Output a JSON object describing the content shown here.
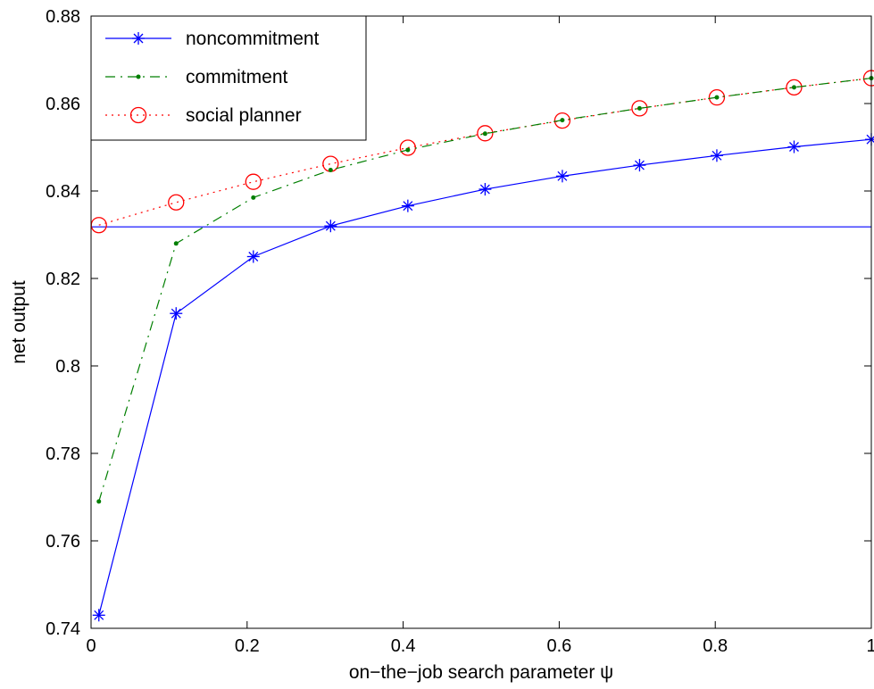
{
  "chart_data": {
    "type": "line",
    "title": "",
    "xlabel": "on−the−job search parameter ψ",
    "ylabel": "net output",
    "xlim": [
      0,
      1
    ],
    "ylim": [
      0.74,
      0.88
    ],
    "xticks": [
      0,
      0.2,
      0.4,
      0.6,
      0.8,
      1
    ],
    "xtick_labels": [
      "0",
      "0.2",
      "0.4",
      "0.6",
      "0.8",
      "1"
    ],
    "yticks": [
      0.74,
      0.76,
      0.78,
      0.8,
      0.82,
      0.84,
      0.86,
      0.88
    ],
    "ytick_labels": [
      "0.74",
      "0.76",
      "0.78",
      "0.8",
      "0.82",
      "0.84",
      "0.86",
      "0.88"
    ],
    "grid": false,
    "legend_position": "top-left",
    "x": [
      0.01,
      0.109,
      0.208,
      0.307,
      0.406,
      0.505,
      0.604,
      0.703,
      0.802,
      0.901,
      1.0
    ],
    "series": [
      {
        "name": "noncommitment",
        "color": "#0000ff",
        "line_style": "solid",
        "marker": "asterisk",
        "values": [
          0.743,
          0.812,
          0.825,
          0.832,
          0.8366,
          0.8404,
          0.8434,
          0.8459,
          0.8481,
          0.8501,
          0.8518
        ]
      },
      {
        "name": "commitment",
        "color": "#007f00",
        "line_style": "dash-dot",
        "marker": "dot",
        "values": [
          0.769,
          0.828,
          0.8385,
          0.8448,
          0.8494,
          0.8531,
          0.8562,
          0.8589,
          0.8614,
          0.8637,
          0.8658
        ]
      },
      {
        "name": "social planner",
        "color": "#ff0000",
        "line_style": "dotted",
        "marker": "circle",
        "values": [
          0.8322,
          0.8374,
          0.8421,
          0.8462,
          0.8499,
          0.8532,
          0.8561,
          0.8589,
          0.8614,
          0.8637,
          0.8658
        ]
      }
    ],
    "reference_lines": [
      {
        "orientation": "horizontal",
        "y": 0.8318,
        "color": "#0000ff"
      }
    ]
  }
}
